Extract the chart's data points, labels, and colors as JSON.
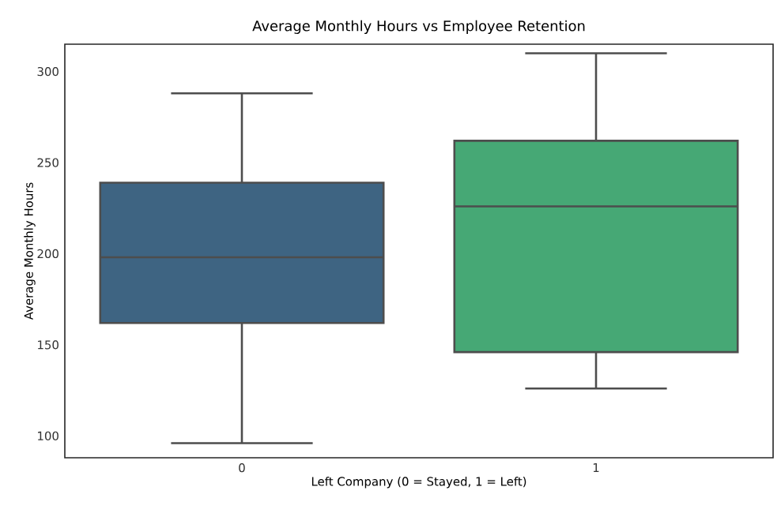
{
  "chart_data": {
    "type": "box",
    "title": "Average Monthly Hours vs Employee Retention",
    "xlabel": "Left Company (0 = Stayed, 1 = Left)",
    "ylabel": "Average Monthly Hours",
    "categories": [
      "0",
      "1"
    ],
    "colors": [
      "#3e6482",
      "#46a875"
    ],
    "boxes": [
      {
        "low": 96,
        "q1": 162,
        "median": 198,
        "q3": 239,
        "high": 288
      },
      {
        "low": 126,
        "q1": 146,
        "median": 226,
        "q3": 262,
        "high": 310
      }
    ],
    "ylim": [
      88,
      315
    ],
    "yticks": [
      100,
      150,
      200,
      250,
      300
    ]
  }
}
